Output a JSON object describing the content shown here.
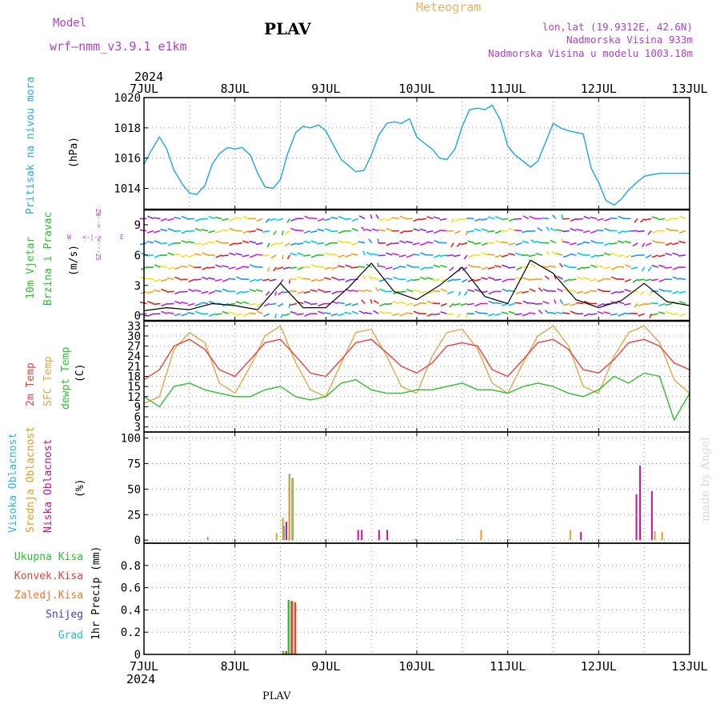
{
  "header": {
    "model_label": "Model",
    "model_name": "wrf—nmm_v3.9.1  e1km",
    "station": "PLAV",
    "product": "Meteogram",
    "lonlat": "lon,lat (19.9312E, 42.6N)",
    "elevation": "Nadmorska Visina 933m",
    "model_elevation": "Nadmorska Visina u modelu 1003.18m",
    "footer_station": "PLAV",
    "watermark": "made by Angel"
  },
  "colors": {
    "pressure": "#29a9e0",
    "t2m": "#e8413c",
    "sfc": "#e0a84a",
    "dew": "#2fbf2f",
    "high_cloud": "#29b7e8",
    "mid_cloud": "#e0a020",
    "low_cloud": "#d0108f",
    "total_precip": "#2fbf2f",
    "conv_precip": "#e8413c",
    "purple_text": "#b040c8"
  },
  "time_axis": {
    "labels": [
      "7JUL",
      "8JUL",
      "9JUL",
      "10JUL",
      "11JUL",
      "12JUL",
      "13JUL"
    ],
    "year": "2024"
  },
  "panels": {
    "pressure": {
      "label": "Pritisak na nivou mora",
      "unit": "(hPa)"
    },
    "wind": {
      "label_line1": "10m Vjetar",
      "label_line2": "Brzina i Pravac",
      "unit": "(m/s)",
      "compass_n": "N",
      "compass_w": "W",
      "compass_e": "E",
      "compass_s": "S",
      "compass_row1": "<---Z",
      "compass_row3": "Z--->"
    },
    "temp": {
      "label_t2m": "2m Temp",
      "label_sfc": "SFC Temp",
      "label_dew": "dewpt Temp",
      "unit": "(C)"
    },
    "cloud": {
      "label_high": "Visoka Oblacnost",
      "label_mid": "Srednja Oblacnost",
      "label_low": "Niska Oblacnost",
      "unit": "(%)"
    },
    "precip": {
      "label_total": "Ukupna Kisa",
      "label_conv": "Konvek.Kisa",
      "label_frz": "Zaledj.Kisa",
      "label_snow": "Snijeg",
      "label_hail": "Grad",
      "unit": "1hr Precip (mm)"
    }
  },
  "chart_data": [
    {
      "type": "line",
      "panel": "pressure",
      "x_unit": "days since 7JUL 00UTC",
      "ylim": [
        1012.6,
        1020
      ],
      "yticks": [
        1014,
        1016,
        1018,
        1020
      ],
      "series": [
        {
          "x": [
            0,
            0.08,
            0.17,
            0.25,
            0.33,
            0.42,
            0.5,
            0.58,
            0.67,
            0.75,
            0.83,
            0.92,
            1,
            1.08,
            1.17,
            1.25,
            1.33,
            1.42,
            1.5,
            1.58,
            1.67,
            1.75,
            1.83,
            1.92,
            2,
            2.08,
            2.17,
            2.25,
            2.33,
            2.42,
            2.5,
            2.58,
            2.67,
            2.75,
            2.83,
            2.92,
            3,
            3.08,
            3.17,
            3.25,
            3.33,
            3.42,
            3.5,
            3.58,
            3.67,
            3.75,
            3.83,
            3.92,
            4,
            4.08,
            4.17,
            4.25,
            4.33,
            4.42,
            4.5,
            4.58,
            4.67,
            4.75,
            4.83,
            4.92,
            5,
            5.08,
            5.17,
            5.25,
            5.33,
            5.42,
            5.5,
            5.58,
            5.67,
            5.75,
            5.83,
            5.92,
            6
          ],
          "values": [
            1015.6,
            1016.5,
            1017.4,
            1016.6,
            1015.2,
            1014.3,
            1013.7,
            1013.6,
            1014.2,
            1015.6,
            1016.3,
            1016.7,
            1016.6,
            1016.7,
            1016.2,
            1015.0,
            1014.1,
            1014.0,
            1014.6,
            1016.3,
            1017.7,
            1018.1,
            1018.0,
            1018.2,
            1017.8,
            1016.9,
            1015.9,
            1015.5,
            1015.1,
            1015.2,
            1016.2,
            1017.5,
            1018.3,
            1018.4,
            1018.3,
            1018.6,
            1017.4,
            1017.0,
            1016.6,
            1016.0,
            1015.9,
            1016.6,
            1018.1,
            1019.2,
            1019.3,
            1019.2,
            1019.5,
            1018.5,
            1016.8,
            1016.2,
            1015.8,
            1015.4,
            1015.8,
            1017.1,
            1018.3,
            1018.0,
            1017.8,
            1017.7,
            1017.6,
            1015.3,
            1014.4,
            1013.2,
            1012.9,
            1013.3,
            1013.9,
            1014.4,
            1014.8,
            1014.9,
            1015.0,
            1015.0,
            1015.0,
            1015.0,
            1015.0
          ]
        }
      ]
    },
    {
      "type": "line",
      "panel": "wind",
      "x_unit": "days since 7JUL 00UTC",
      "ylim": [
        -0.5,
        10.5
      ],
      "yticks": [
        0,
        3,
        6,
        9
      ],
      "series": [
        {
          "name": "10m wind speed",
          "x": [
            0,
            0.25,
            0.5,
            0.75,
            1,
            1.25,
            1.5,
            1.75,
            2,
            2.25,
            2.5,
            2.75,
            3,
            3.25,
            3.5,
            3.75,
            4,
            4.25,
            4.5,
            4.75,
            5,
            5.25,
            5.5,
            5.75,
            6
          ],
          "values": [
            0.5,
            0.8,
            0.6,
            1.2,
            1.0,
            0.6,
            3.2,
            0.8,
            0.8,
            2.8,
            5.2,
            2.4,
            1.6,
            3.0,
            4.8,
            1.9,
            1.2,
            5.5,
            4.2,
            1.6,
            0.8,
            1.5,
            3.2,
            1.4,
            1.0
          ]
        }
      ]
    },
    {
      "type": "line",
      "panel": "temp",
      "x_unit": "days since 7JUL 00UTC",
      "ylim": [
        1.5,
        34.5
      ],
      "yticks": [
        3,
        6,
        9,
        12,
        15,
        18,
        21,
        24,
        27,
        30,
        33
      ],
      "series": [
        {
          "name": "2m Temp",
          "x": [
            0,
            0.17,
            0.33,
            0.5,
            0.67,
            0.83,
            1,
            1.17,
            1.33,
            1.5,
            1.67,
            1.83,
            2,
            2.17,
            2.33,
            2.5,
            2.67,
            2.83,
            3,
            3.17,
            3.33,
            3.5,
            3.67,
            3.83,
            4,
            4.17,
            4.33,
            4.5,
            4.67,
            4.83,
            5,
            5.17,
            5.33,
            5.5,
            5.67,
            5.83,
            6
          ],
          "values": [
            17,
            20,
            27,
            29,
            26,
            20,
            18,
            23,
            28,
            29,
            24,
            19,
            18,
            23,
            28,
            29,
            25,
            21,
            19,
            22,
            27,
            28,
            27,
            20,
            18,
            23,
            28,
            29,
            26,
            20,
            19,
            23,
            28,
            29,
            27,
            22,
            20
          ]
        },
        {
          "name": "SFC Temp",
          "x": [
            0,
            0.17,
            0.33,
            0.5,
            0.67,
            0.83,
            1,
            1.17,
            1.33,
            1.5,
            1.67,
            1.83,
            2,
            2.17,
            2.33,
            2.5,
            2.67,
            2.83,
            3,
            3.17,
            3.33,
            3.5,
            3.67,
            3.83,
            4,
            4.17,
            4.33,
            4.5,
            4.67,
            4.83,
            5,
            5.17,
            5.33,
            5.5,
            5.67,
            5.83,
            6
          ],
          "values": [
            10,
            12,
            26,
            31,
            28,
            16,
            13,
            21,
            30,
            33,
            22,
            14,
            12,
            22,
            31,
            32,
            24,
            15,
            13,
            24,
            31,
            32,
            26,
            16,
            13,
            22,
            30,
            33,
            27,
            15,
            13,
            24,
            31,
            33,
            28,
            17,
            13
          ]
        },
        {
          "name": "dewpt Temp",
          "x": [
            0,
            0.17,
            0.33,
            0.5,
            0.67,
            0.83,
            1,
            1.17,
            1.33,
            1.5,
            1.67,
            1.83,
            2,
            2.17,
            2.33,
            2.5,
            2.67,
            2.83,
            3,
            3.17,
            3.33,
            3.5,
            3.67,
            3.83,
            4,
            4.17,
            4.33,
            4.5,
            4.67,
            4.83,
            5,
            5.17,
            5.33,
            5.5,
            5.67,
            5.83,
            6
          ],
          "values": [
            12,
            9,
            15,
            16,
            14,
            13,
            12,
            12,
            14,
            15,
            12,
            11,
            12,
            16,
            17,
            14,
            13,
            13,
            14,
            14,
            15,
            16,
            14,
            14,
            13,
            15,
            16,
            15,
            13,
            12,
            14,
            18,
            16,
            19,
            18,
            5,
            13
          ]
        }
      ]
    },
    {
      "type": "bar",
      "panel": "cloud",
      "x_unit": "days since 7JUL 00UTC",
      "ylim": [
        -3,
        106
      ],
      "yticks": [
        0,
        25,
        50,
        75,
        100
      ],
      "series": [
        {
          "name": "Visoka Oblacnost",
          "x": [
            0.7,
            1.54,
            1.6,
            1.63,
            2.98,
            3.45,
            3.5,
            4.02
          ],
          "values": [
            3,
            14,
            65,
            61,
            1,
            1,
            1,
            1
          ]
        },
        {
          "name": "Srednja Oblacnost",
          "x": [
            1.44,
            1.51,
            1.58,
            1.62,
            3.69,
            4.67,
            5.44,
            5.6,
            5.68
          ],
          "values": [
            7,
            22,
            63,
            61,
            10,
            10,
            10,
            9,
            8
          ]
        },
        {
          "name": "Niska Oblacnost",
          "x": [
            1.53,
            2.32,
            2.36,
            2.55,
            2.64,
            4.77,
            5.38,
            5.42,
            5.55
          ],
          "values": [
            18,
            10,
            10,
            10,
            10,
            8,
            45,
            73,
            48
          ]
        }
      ]
    },
    {
      "type": "bar",
      "panel": "precip",
      "x_unit": "days since 7JUL 00UTC",
      "ylim": [
        0,
        1.0
      ],
      "yticks": [
        0,
        0.2,
        0.4,
        0.6,
        0.8
      ],
      "series": [
        {
          "name": "Ukupna Kisa",
          "x": [
            1.52,
            1.58,
            1.62
          ],
          "values": [
            0.03,
            0.49,
            0.48
          ]
        },
        {
          "name": "Konvek.Kisa",
          "x": [
            1.53,
            1.59,
            1.63
          ],
          "values": [
            0.03,
            0.48,
            0.47
          ]
        }
      ]
    }
  ]
}
